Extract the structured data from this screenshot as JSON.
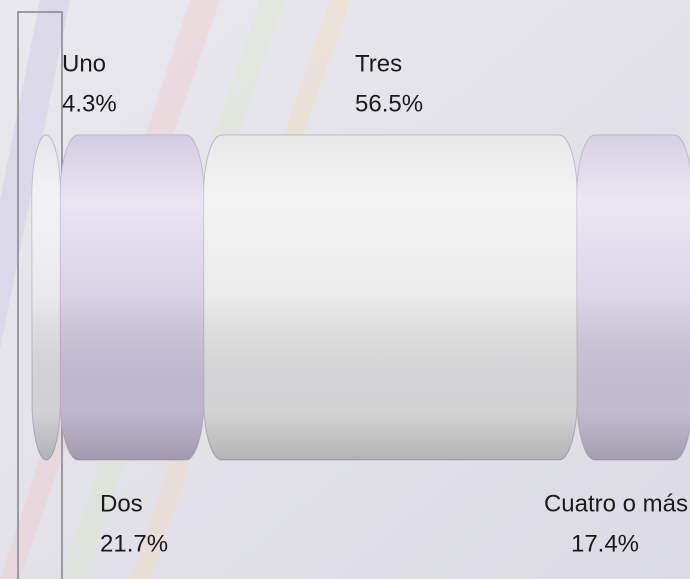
{
  "chart_data": {
    "type": "bar",
    "categories": [
      "Uno",
      "Dos",
      "Tres",
      "Cuatro o más"
    ],
    "values": [
      4.3,
      21.7,
      56.5,
      17.4
    ],
    "value_labels": [
      "4.3%",
      "21.7%",
      "56.5%",
      "17.4%"
    ],
    "colors": [
      "#e4e4e8",
      "#cfc6df",
      "#e6e6e8",
      "#d3cbe1"
    ]
  }
}
